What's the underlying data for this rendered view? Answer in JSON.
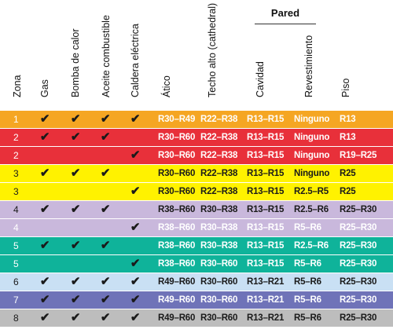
{
  "header": {
    "group_title": "Pared",
    "columns": [
      "Zona",
      "Gas",
      "Bomba de calor",
      "Aceite combustible",
      "Caldera eléctrica",
      "Ático",
      "Techo alto (cathedral)",
      "Cavidad",
      "Revestimiento",
      "Piso"
    ]
  },
  "check_glyph": "✔",
  "rows": [
    {
      "zone": "1",
      "gas": true,
      "heat_pump": true,
      "oil": true,
      "electric": true,
      "attic": "R30–R49",
      "cathedral": "R22–R38",
      "cavity": "R13–R15",
      "sheathing": "Ninguno",
      "floor": "R13",
      "bg": "#f5a623",
      "fg": "#ffffff",
      "chk": "#1a1a1a"
    },
    {
      "zone": "2",
      "gas": true,
      "heat_pump": true,
      "oil": true,
      "electric": false,
      "attic": "R30–R60",
      "cathedral": "R22–R38",
      "cavity": "R13–R15",
      "sheathing": "Ninguno",
      "floor": "R13",
      "bg": "#e8303a",
      "fg": "#ffffff",
      "chk": "#1a1a1a"
    },
    {
      "zone": "2",
      "gas": false,
      "heat_pump": false,
      "oil": false,
      "electric": true,
      "attic": "R30–R60",
      "cathedral": "R22–R38",
      "cavity": "R13–R15",
      "sheathing": "Ninguno",
      "floor": "R19–R25",
      "bg": "#e8303a",
      "fg": "#ffffff",
      "chk": "#1a1a1a"
    },
    {
      "zone": "3",
      "gas": true,
      "heat_pump": true,
      "oil": true,
      "electric": false,
      "attic": "R30–R60",
      "cathedral": "R22–R38",
      "cavity": "R13–R15",
      "sheathing": "Ninguno",
      "floor": "R25",
      "bg": "#fff200",
      "fg": "#1a1a1a",
      "chk": "#1a1a1a"
    },
    {
      "zone": "3",
      "gas": false,
      "heat_pump": false,
      "oil": false,
      "electric": true,
      "attic": "R30–R60",
      "cathedral": "R22–R38",
      "cavity": "R13–R15",
      "sheathing": "R2.5–R5",
      "floor": "R25",
      "bg": "#fff200",
      "fg": "#1a1a1a",
      "chk": "#1a1a1a"
    },
    {
      "zone": "4",
      "gas": true,
      "heat_pump": true,
      "oil": true,
      "electric": false,
      "attic": "R38–R60",
      "cathedral": "R30–R38",
      "cavity": "R13–R15",
      "sheathing": "R2.5–R6",
      "floor": "R25–R30",
      "bg": "#c9b8dc",
      "fg": "#1a1a1a",
      "chk": "#1a1a1a"
    },
    {
      "zone": "4",
      "gas": false,
      "heat_pump": false,
      "oil": false,
      "electric": true,
      "attic": "R38–R60",
      "cathedral": "R30–R38",
      "cavity": "R13–R15",
      "sheathing": "R5–R6",
      "floor": "R25–R30",
      "bg": "#c9b8dc",
      "fg": "#ffffff",
      "chk": "#1a1a1a"
    },
    {
      "zone": "5",
      "gas": true,
      "heat_pump": true,
      "oil": true,
      "electric": false,
      "attic": "R38–R60",
      "cathedral": "R30–R38",
      "cavity": "R13–R15",
      "sheathing": "R2.5–R6",
      "floor": "R25–R30",
      "bg": "#0fb39a",
      "fg": "#ffffff",
      "chk": "#1a1a1a"
    },
    {
      "zone": "5",
      "gas": false,
      "heat_pump": false,
      "oil": false,
      "electric": true,
      "attic": "R38–R60",
      "cathedral": "R30–R60",
      "cavity": "R13–R15",
      "sheathing": "R5–R6",
      "floor": "R25–R30",
      "bg": "#0fb39a",
      "fg": "#ffffff",
      "chk": "#1a1a1a"
    },
    {
      "zone": "6",
      "gas": true,
      "heat_pump": true,
      "oil": true,
      "electric": true,
      "attic": "R49–R60",
      "cathedral": "R30–R60",
      "cavity": "R13–R21",
      "sheathing": "R5–R6",
      "floor": "R25–R30",
      "bg": "#c9e0f4",
      "fg": "#1a1a1a",
      "chk": "#1a1a1a"
    },
    {
      "zone": "7",
      "gas": true,
      "heat_pump": true,
      "oil": true,
      "electric": true,
      "attic": "R49–R60",
      "cathedral": "R30–R60",
      "cavity": "R13–R21",
      "sheathing": "R5–R6",
      "floor": "R25–R30",
      "bg": "#6f73b8",
      "fg": "#ffffff",
      "chk": "#1a1a1a"
    },
    {
      "zone": "8",
      "gas": true,
      "heat_pump": true,
      "oil": true,
      "electric": true,
      "attic": "R49–R60",
      "cathedral": "R30–R60",
      "cavity": "R13–R21",
      "sheathing": "R5–R6",
      "floor": "R25–R30",
      "bg": "#bdbdbd",
      "fg": "#1a1a1a",
      "chk": "#1a1a1a"
    }
  ]
}
